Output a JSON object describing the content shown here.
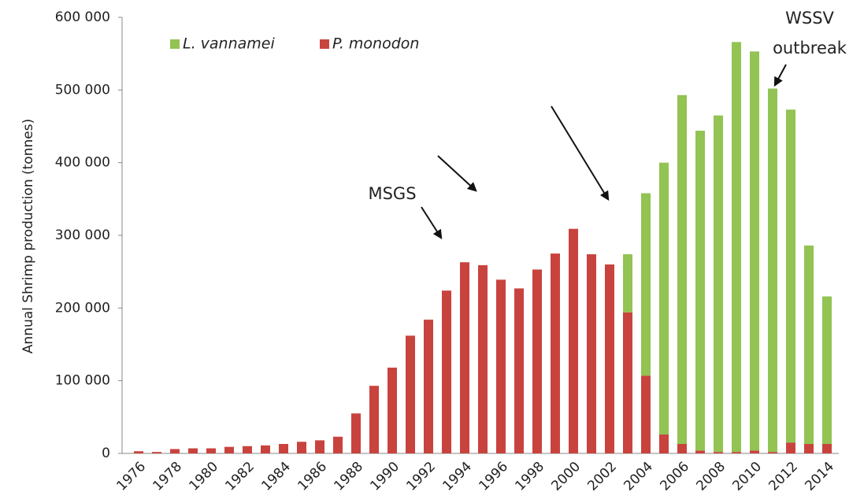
{
  "chart_data": {
    "type": "stacked_bar",
    "y_label": "Annual Shrimp production (tonnes)",
    "categories": [
      "1976",
      null,
      "1978",
      null,
      "1980",
      null,
      "1982",
      null,
      "1984",
      null,
      "1986",
      null,
      "1988",
      null,
      "1990",
      null,
      "1992",
      null,
      "1994",
      null,
      "1996",
      null,
      "1998",
      null,
      "2000",
      null,
      "2002",
      null,
      "2004",
      null,
      "2006",
      null,
      "2008",
      null,
      "2010",
      null,
      "2012",
      null,
      "2014"
    ],
    "series": [
      {
        "name": "P. monodon",
        "color": "#c9433e",
        "values": [
          3000,
          2000,
          6000,
          7000,
          7000,
          9000,
          10000,
          11000,
          13000,
          16000,
          18000,
          23000,
          55000,
          93000,
          118000,
          162000,
          184000,
          224000,
          263000,
          259000,
          239000,
          227000,
          253000,
          275000,
          309000,
          274000,
          260000,
          194000,
          107000,
          26000,
          13000,
          4000,
          2000,
          2000,
          4000,
          2000,
          15000,
          13000,
          13000
        ]
      },
      {
        "name": "L. vannamei",
        "color": "#92c353",
        "values": [
          null,
          null,
          null,
          null,
          null,
          null,
          null,
          null,
          null,
          null,
          null,
          null,
          null,
          null,
          null,
          null,
          null,
          null,
          null,
          null,
          null,
          null,
          null,
          null,
          null,
          null,
          null,
          80000,
          251000,
          374000,
          480000,
          440000,
          463000,
          564000,
          549000,
          500000,
          458000,
          273000,
          203000
        ]
      }
    ],
    "legend_order": [
      1,
      0
    ],
    "ylim": [
      0,
      600000
    ],
    "yticks": [
      0,
      {
        "value": 100000,
        "label": "100 000"
      },
      {
        "value": 200000,
        "label": "200 000"
      },
      {
        "value": 300000,
        "label": "300 000"
      },
      {
        "value": 400000,
        "label": "400 000"
      },
      {
        "value": 500000,
        "label": "500 000"
      },
      {
        "value": 600000,
        "label": "600 000"
      }
    ],
    "annotations": [
      "MSGS",
      "WSSV",
      "outbreak"
    ]
  }
}
